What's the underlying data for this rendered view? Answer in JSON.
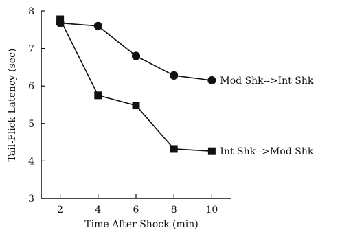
{
  "chart_data": {
    "type": "line",
    "title": "",
    "xlabel": "Time After Shock (min)",
    "ylabel": "Tail-Flick Latency (sec)",
    "xlim": [
      1,
      11
    ],
    "ylim": [
      3,
      8
    ],
    "x_ticks": [
      "2",
      "4",
      "6",
      "8",
      "10"
    ],
    "y_ticks": [
      "3",
      "4",
      "5",
      "6",
      "7",
      "8"
    ],
    "grid": false,
    "series": [
      {
        "name": "Mod Shk-->Int Shk",
        "marker": "circle",
        "color": "#111111",
        "x": [
          2,
          4,
          6,
          8,
          10
        ],
        "y": [
          7.68,
          7.6,
          6.8,
          6.28,
          6.15
        ]
      },
      {
        "name": "Int Shk-->Mod Shk",
        "marker": "square",
        "color": "#111111",
        "x": [
          2,
          4,
          6,
          8,
          10
        ],
        "y": [
          7.78,
          5.75,
          5.48,
          4.32,
          4.26
        ]
      }
    ]
  }
}
